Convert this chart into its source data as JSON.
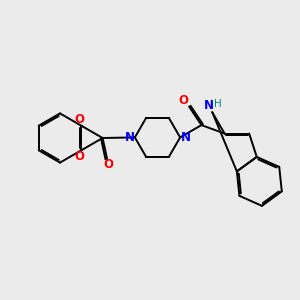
{
  "bg_color": "#ebebeb",
  "bond_color": "#000000",
  "N_color": "#0000ff",
  "O_color": "#ff0000",
  "H_color": "#008b8b",
  "lw": 1.4,
  "dbo": 0.055,
  "fs": 8.5,
  "xlim": [
    0,
    10
  ],
  "ylim": [
    0,
    10
  ]
}
